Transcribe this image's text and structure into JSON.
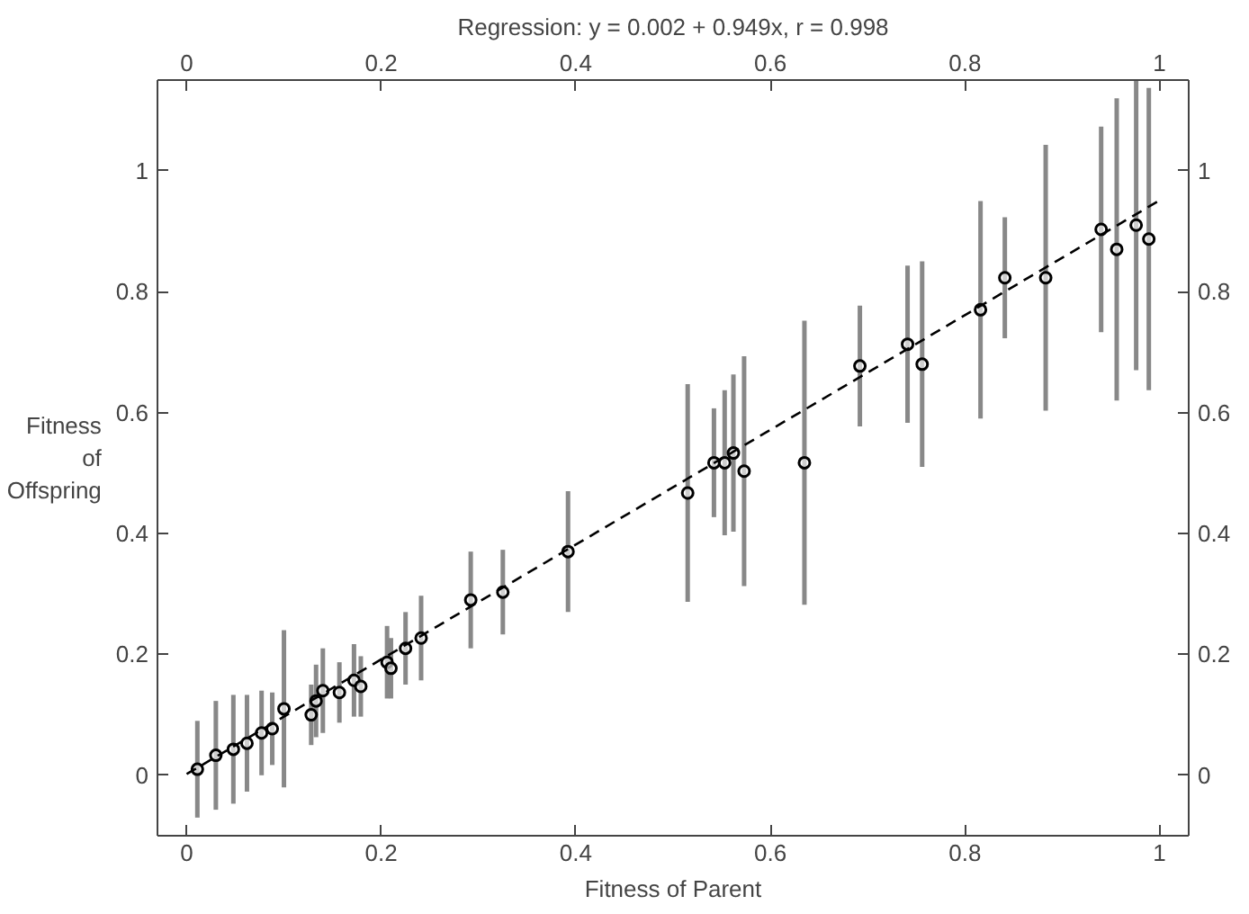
{
  "chart_data": {
    "type": "scatter",
    "title": "Regression: y = 0.002 + 0.949x, r = 0.998",
    "xlabel": "Fitness of Parent",
    "ylabel": "Fitness of Offspring",
    "xlim": [
      -0.03,
      1.03
    ],
    "ylim": [
      -0.1,
      1.15
    ],
    "xticks": [
      0,
      0.2,
      0.4,
      0.6,
      0.8,
      1
    ],
    "yticks": [
      0,
      0.2,
      0.4,
      0.6,
      0.8,
      1
    ],
    "x2lim": [
      -0.03,
      1.03
    ],
    "x2ticks": [
      0,
      0.2,
      0.4,
      0.6,
      0.8,
      1
    ],
    "y2lim": [
      -0.1,
      1.15
    ],
    "y2ticks": [
      0,
      0.2,
      0.4,
      0.6,
      0.8,
      1
    ],
    "grid": false,
    "series": [
      {
        "marker": "circle",
        "color": "#000000",
        "x": [
          0.011,
          0.03,
          0.048,
          0.062,
          0.077,
          0.088,
          0.1,
          0.128,
          0.133,
          0.14,
          0.157,
          0.172,
          0.179,
          0.206,
          0.21,
          0.225,
          0.241,
          0.292,
          0.325,
          0.392,
          0.515,
          0.542,
          0.553,
          0.562,
          0.573,
          0.635,
          0.692,
          0.741,
          0.756,
          0.816,
          0.841,
          0.883,
          0.94,
          0.956,
          0.976,
          0.989
        ],
        "values": [
          0.01,
          0.033,
          0.043,
          0.053,
          0.07,
          0.077,
          0.11,
          0.1,
          0.123,
          0.14,
          0.137,
          0.157,
          0.147,
          0.187,
          0.177,
          0.21,
          0.227,
          0.29,
          0.303,
          0.37,
          0.467,
          0.517,
          0.517,
          0.533,
          0.503,
          0.517,
          0.677,
          0.713,
          0.68,
          0.77,
          0.823,
          0.823,
          0.903,
          0.87,
          0.91,
          0.887
        ],
        "errors": [
          0.08,
          0.09,
          0.09,
          0.08,
          0.07,
          0.06,
          0.13,
          0.05,
          0.06,
          0.07,
          0.05,
          0.06,
          0.05,
          0.06,
          0.05,
          0.06,
          0.07,
          0.08,
          0.07,
          0.1,
          0.18,
          0.09,
          0.12,
          0.13,
          0.19,
          0.235,
          0.1,
          0.13,
          0.17,
          0.18,
          0.1,
          0.22,
          0.17,
          0.25,
          0.24,
          0.25
        ]
      },
      {
        "type": "line",
        "color": "#000000",
        "line_style": "dashed",
        "x": [
          0,
          1
        ],
        "values": [
          0.002,
          0.951
        ]
      }
    ]
  }
}
